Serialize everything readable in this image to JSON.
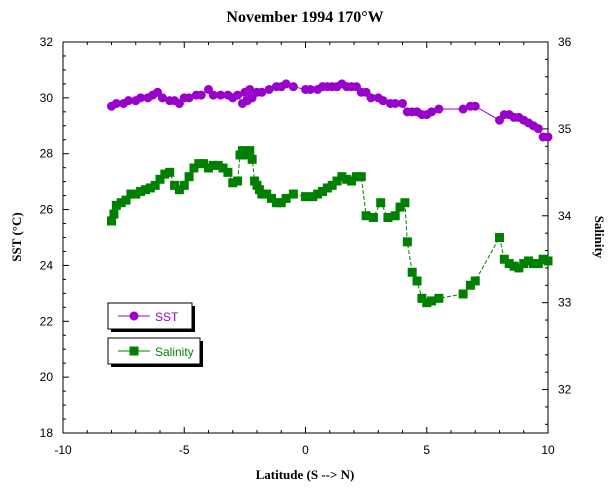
{
  "chart_data": {
    "type": "scatter",
    "title": "November 1994 170°W",
    "xlabel": "Latitude (S --> N)",
    "ylabel": "SST (°C)",
    "y2label": "Salinity",
    "xlim": [
      -10,
      10
    ],
    "ylim": [
      18,
      32
    ],
    "y2lim": [
      31.5,
      36
    ],
    "xticks": [
      "-10",
      "-5",
      "0",
      "5",
      "10"
    ],
    "yticks": [
      "18",
      "20",
      "22",
      "24",
      "26",
      "28",
      "30",
      "32"
    ],
    "y2ticks": [
      "32",
      "33",
      "34",
      "35",
      "36"
    ],
    "legend_position": "bottom-left",
    "colors": {
      "sst": "#9900cc",
      "salinity": "#008000"
    },
    "series": [
      {
        "name": "SST",
        "axis": "left",
        "marker": "circle",
        "x": [
          -8.0,
          -7.8,
          -7.5,
          -7.3,
          -7.0,
          -6.8,
          -6.5,
          -6.3,
          -6.1,
          -5.9,
          -5.6,
          -5.4,
          -5.2,
          -5.0,
          -4.8,
          -4.5,
          -4.3,
          -4.0,
          -3.8,
          -3.5,
          -3.2,
          -3.0,
          -2.8,
          -2.6,
          -2.5,
          -2.4,
          -2.3,
          -2.2,
          -2.0,
          -1.8,
          -1.5,
          -1.2,
          -1.0,
          -0.8,
          -0.5,
          0.0,
          0.2,
          0.5,
          0.7,
          0.9,
          1.1,
          1.3,
          1.5,
          1.7,
          1.9,
          2.1,
          2.3,
          2.5,
          2.7,
          3.0,
          3.2,
          3.5,
          3.7,
          4.0,
          4.2,
          4.4,
          4.6,
          4.8,
          5.0,
          5.2,
          5.5,
          6.5,
          6.8,
          7.0,
          8.0,
          8.2,
          8.4,
          8.6,
          8.8,
          9.0,
          9.2,
          9.4,
          9.6,
          9.8,
          10.0
        ],
        "y": [
          29.7,
          29.8,
          29.8,
          29.9,
          29.9,
          30.0,
          30.0,
          30.1,
          30.2,
          30.0,
          29.9,
          29.9,
          29.8,
          30.0,
          30.0,
          30.1,
          30.1,
          30.3,
          30.1,
          30.1,
          30.1,
          30.0,
          30.1,
          29.8,
          30.2,
          29.9,
          30.3,
          30.0,
          30.2,
          30.2,
          30.3,
          30.4,
          30.4,
          30.5,
          30.4,
          30.3,
          30.3,
          30.3,
          30.4,
          30.4,
          30.4,
          30.4,
          30.5,
          30.4,
          30.4,
          30.4,
          30.2,
          30.2,
          30.0,
          30.0,
          29.9,
          29.8,
          29.8,
          29.8,
          29.5,
          29.5,
          29.5,
          29.4,
          29.4,
          29.5,
          29.6,
          29.6,
          29.7,
          29.7,
          29.2,
          29.4,
          29.4,
          29.3,
          29.3,
          29.2,
          29.1,
          29.0,
          28.9,
          28.6,
          28.6
        ]
      },
      {
        "name": "Salinity",
        "axis": "right",
        "marker": "square",
        "x": [
          -8.0,
          -7.9,
          -7.8,
          -7.6,
          -7.4,
          -7.2,
          -7.0,
          -6.8,
          -6.6,
          -6.4,
          -6.2,
          -6.0,
          -5.8,
          -5.6,
          -5.4,
          -5.2,
          -5.0,
          -4.8,
          -4.6,
          -4.4,
          -4.2,
          -4.0,
          -3.8,
          -3.6,
          -3.4,
          -3.2,
          -3.0,
          -2.8,
          -2.7,
          -2.6,
          -2.5,
          -2.4,
          -2.3,
          -2.2,
          -2.1,
          -2.0,
          -1.9,
          -1.8,
          -1.6,
          -1.4,
          -1.2,
          -1.0,
          -0.8,
          -0.5,
          0.0,
          0.3,
          0.5,
          0.7,
          0.9,
          1.1,
          1.3,
          1.5,
          1.7,
          1.9,
          2.1,
          2.3,
          2.5,
          2.8,
          3.1,
          3.4,
          3.7,
          3.9,
          4.1,
          4.2,
          4.4,
          4.6,
          4.8,
          5.0,
          5.2,
          5.5,
          6.5,
          6.8,
          7.0,
          8.0,
          8.2,
          8.4,
          8.6,
          8.8,
          9.0,
          9.2,
          9.4,
          9.6,
          9.8,
          10.0
        ],
        "y": [
          33.94,
          34.02,
          34.12,
          34.15,
          34.18,
          34.25,
          34.25,
          34.28,
          34.3,
          34.32,
          34.35,
          34.42,
          34.48,
          34.5,
          34.35,
          34.3,
          34.35,
          34.45,
          34.55,
          34.6,
          34.6,
          34.55,
          34.58,
          34.58,
          34.55,
          34.5,
          34.38,
          34.4,
          34.7,
          34.75,
          34.73,
          34.7,
          34.75,
          34.65,
          34.4,
          34.35,
          34.3,
          34.25,
          34.25,
          34.2,
          34.15,
          34.15,
          34.2,
          34.25,
          34.22,
          34.22,
          34.25,
          34.28,
          34.32,
          34.35,
          34.4,
          34.45,
          34.42,
          34.4,
          34.45,
          34.45,
          34.0,
          33.98,
          34.15,
          33.98,
          34.0,
          34.1,
          34.15,
          33.7,
          33.35,
          33.25,
          33.05,
          33.0,
          33.02,
          33.05,
          33.1,
          33.2,
          33.25,
          33.75,
          33.5,
          33.45,
          33.42,
          33.4,
          33.45,
          33.48,
          33.45,
          33.45,
          33.5,
          33.48
        ]
      }
    ]
  }
}
